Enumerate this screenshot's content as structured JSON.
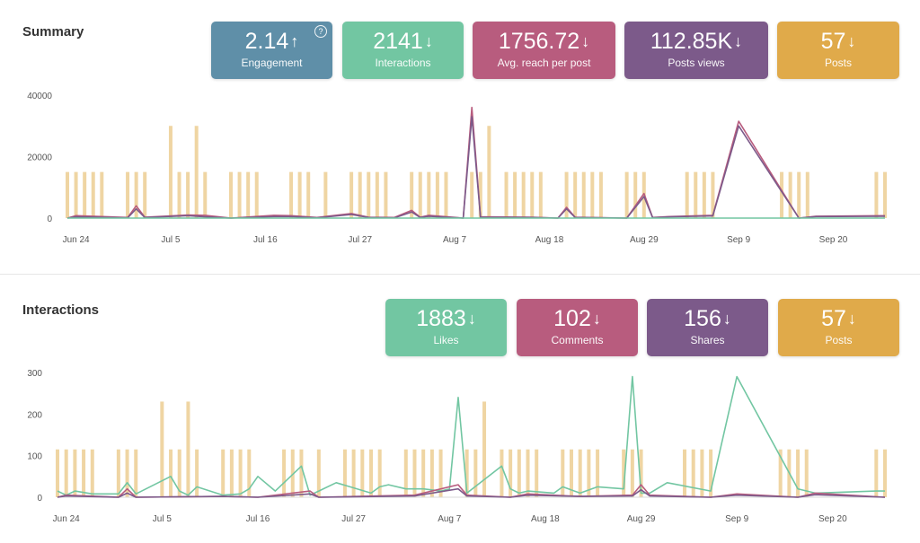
{
  "summary": {
    "title": "Summary",
    "cards": [
      {
        "value": "2.14",
        "arrow": "↑",
        "label": "Engagement",
        "color": "#5f8fa8",
        "help": "?"
      },
      {
        "value": "2141",
        "arrow": "↓",
        "label": "Interactions",
        "color": "#72c6a2"
      },
      {
        "value": "1756.72",
        "arrow": "↓",
        "label": "Avg. reach per post",
        "color": "#b85c7e"
      },
      {
        "value": "112.85K",
        "arrow": "↓",
        "label": "Posts views",
        "color": "#7c5a8a"
      },
      {
        "value": "57",
        "arrow": "↓",
        "label": "Posts",
        "color": "#e0aa4a"
      }
    ]
  },
  "interactions": {
    "title": "Interactions",
    "cards": [
      {
        "value": "1883",
        "arrow": "↓",
        "label": "Likes",
        "color": "#72c6a2"
      },
      {
        "value": "102",
        "arrow": "↓",
        "label": "Comments",
        "color": "#b85c7e"
      },
      {
        "value": "156",
        "arrow": "↓",
        "label": "Shares",
        "color": "#7c5a8a"
      },
      {
        "value": "57",
        "arrow": "↓",
        "label": "Posts",
        "color": "#e0aa4a"
      }
    ]
  },
  "chart_data": [
    {
      "type": "line",
      "x_range": [
        "2019-06-23",
        "2019-09-26"
      ],
      "x_ticks": [
        "Jun 24",
        "Jul 5",
        "Jul 16",
        "Jul 27",
        "Aug 7",
        "Aug 18",
        "Aug 29",
        "Sep 9",
        "Sep 20"
      ],
      "ylim": [
        0,
        40000
      ],
      "y_ticks": [
        "0",
        "20000",
        "40000"
      ],
      "post_bars": {
        "color": "#efd5a3",
        "dates": [
          "2019-06-23",
          "2019-06-24",
          "2019-06-25",
          "2019-06-26",
          "2019-06-27",
          "2019-06-30",
          "2019-07-01",
          "2019-07-02",
          "2019-07-05",
          "2019-07-06",
          "2019-07-07",
          "2019-07-08",
          "2019-07-09",
          "2019-07-12",
          "2019-07-13",
          "2019-07-14",
          "2019-07-15",
          "2019-07-19",
          "2019-07-20",
          "2019-07-21",
          "2019-07-23",
          "2019-07-26",
          "2019-07-27",
          "2019-07-28",
          "2019-07-29",
          "2019-07-30",
          "2019-08-02",
          "2019-08-03",
          "2019-08-04",
          "2019-08-05",
          "2019-08-06",
          "2019-08-09",
          "2019-08-10",
          "2019-08-11",
          "2019-08-13",
          "2019-08-14",
          "2019-08-15",
          "2019-08-16",
          "2019-08-17",
          "2019-08-20",
          "2019-08-21",
          "2019-08-22",
          "2019-08-23",
          "2019-08-24",
          "2019-08-27",
          "2019-08-28",
          "2019-08-29",
          "2019-09-03",
          "2019-09-04",
          "2019-09-05",
          "2019-09-06",
          "2019-09-14",
          "2019-09-15",
          "2019-09-16",
          "2019-09-17",
          "2019-09-25",
          "2019-09-26"
        ],
        "values": [
          15000,
          15000,
          15000,
          15000,
          15000,
          15000,
          15000,
          15000,
          30000,
          15000,
          15000,
          30000,
          15000,
          15000,
          15000,
          15000,
          15000,
          15000,
          15000,
          15000,
          15000,
          15000,
          15000,
          15000,
          15000,
          15000,
          15000,
          15000,
          15000,
          15000,
          15000,
          15000,
          15000,
          30000,
          15000,
          15000,
          15000,
          15000,
          15000,
          15000,
          15000,
          15000,
          15000,
          15000,
          15000,
          15000,
          15000,
          15000,
          15000,
          15000,
          15000,
          15000,
          15000,
          15000,
          15000,
          15000,
          15000
        ]
      },
      "series": [
        {
          "color": "#b85c7e",
          "x": [
            "2019-06-23",
            "2019-06-24",
            "2019-06-30",
            "2019-07-01",
            "2019-07-02",
            "2019-07-07",
            "2019-07-09",
            "2019-07-12",
            "2019-07-17",
            "2019-07-19",
            "2019-07-22",
            "2019-07-26",
            "2019-07-28",
            "2019-07-31",
            "2019-08-02",
            "2019-08-03",
            "2019-08-04",
            "2019-08-08",
            "2019-08-09",
            "2019-08-10",
            "2019-08-16",
            "2019-08-19",
            "2019-08-20",
            "2019-08-21",
            "2019-08-27",
            "2019-08-29",
            "2019-08-30",
            "2019-09-01",
            "2019-09-06",
            "2019-09-09",
            "2019-09-16",
            "2019-09-18",
            "2019-09-26"
          ],
          "y": [
            0,
            800,
            200,
            4000,
            300,
            1000,
            900,
            0,
            900,
            800,
            200,
            1500,
            300,
            200,
            2500,
            300,
            900,
            0,
            36000,
            400,
            300,
            0,
            3500,
            300,
            0,
            8000,
            200,
            500,
            900,
            31500,
            0,
            600,
            800
          ]
        },
        {
          "color": "#7c5a8a",
          "x": [
            "2019-06-23",
            "2019-06-24",
            "2019-06-30",
            "2019-07-01",
            "2019-07-02",
            "2019-07-07",
            "2019-07-09",
            "2019-07-12",
            "2019-07-17",
            "2019-07-19",
            "2019-07-22",
            "2019-07-26",
            "2019-07-28",
            "2019-07-31",
            "2019-08-02",
            "2019-08-03",
            "2019-08-04",
            "2019-08-08",
            "2019-08-09",
            "2019-08-10",
            "2019-08-16",
            "2019-08-19",
            "2019-08-20",
            "2019-08-21",
            "2019-08-27",
            "2019-08-29",
            "2019-08-30",
            "2019-09-01",
            "2019-09-06",
            "2019-09-09",
            "2019-09-16",
            "2019-09-18",
            "2019-09-26"
          ],
          "y": [
            0,
            400,
            100,
            3000,
            200,
            800,
            400,
            0,
            500,
            500,
            100,
            1200,
            200,
            100,
            2000,
            200,
            600,
            0,
            33000,
            300,
            200,
            0,
            3000,
            200,
            0,
            7000,
            150,
            400,
            700,
            30000,
            0,
            500,
            600
          ]
        },
        {
          "color": "#72c6a2",
          "x": [
            "2019-06-23",
            "2019-09-26"
          ],
          "y": [
            0,
            0
          ]
        }
      ]
    },
    {
      "type": "line",
      "x_range": [
        "2019-06-23",
        "2019-09-26"
      ],
      "x_ticks": [
        "Jun 24",
        "Jul 5",
        "Jul 16",
        "Jul 27",
        "Aug 7",
        "Aug 18",
        "Aug 29",
        "Sep 9",
        "Sep 20"
      ],
      "ylim": [
        0,
        300
      ],
      "y_ticks": [
        "0",
        "100",
        "200",
        "300"
      ],
      "post_bars": {
        "color": "#efd5a3",
        "dates": [
          "2019-06-23",
          "2019-06-24",
          "2019-06-25",
          "2019-06-26",
          "2019-06-27",
          "2019-06-30",
          "2019-07-01",
          "2019-07-02",
          "2019-07-05",
          "2019-07-06",
          "2019-07-07",
          "2019-07-08",
          "2019-07-09",
          "2019-07-12",
          "2019-07-13",
          "2019-07-14",
          "2019-07-15",
          "2019-07-19",
          "2019-07-20",
          "2019-07-21",
          "2019-07-23",
          "2019-07-26",
          "2019-07-27",
          "2019-07-28",
          "2019-07-29",
          "2019-07-30",
          "2019-08-02",
          "2019-08-03",
          "2019-08-04",
          "2019-08-05",
          "2019-08-06",
          "2019-08-09",
          "2019-08-10",
          "2019-08-11",
          "2019-08-13",
          "2019-08-14",
          "2019-08-15",
          "2019-08-16",
          "2019-08-17",
          "2019-08-20",
          "2019-08-21",
          "2019-08-22",
          "2019-08-23",
          "2019-08-24",
          "2019-08-27",
          "2019-08-28",
          "2019-08-29",
          "2019-09-03",
          "2019-09-04",
          "2019-09-05",
          "2019-09-06",
          "2019-09-14",
          "2019-09-15",
          "2019-09-16",
          "2019-09-17",
          "2019-09-25",
          "2019-09-26"
        ],
        "values": [
          115,
          115,
          115,
          115,
          115,
          115,
          115,
          115,
          230,
          115,
          115,
          230,
          115,
          115,
          115,
          115,
          115,
          115,
          115,
          115,
          115,
          115,
          115,
          115,
          115,
          115,
          115,
          115,
          115,
          115,
          115,
          115,
          115,
          230,
          115,
          115,
          115,
          115,
          115,
          115,
          115,
          115,
          115,
          115,
          115,
          115,
          115,
          115,
          115,
          115,
          115,
          115,
          115,
          115,
          115,
          115,
          115
        ]
      },
      "series": [
        {
          "color": "#72c6a2",
          "x": [
            "2019-06-23",
            "2019-06-24",
            "2019-06-25",
            "2019-06-27",
            "2019-06-30",
            "2019-07-01",
            "2019-07-02",
            "2019-07-06",
            "2019-07-07",
            "2019-07-08",
            "2019-07-09",
            "2019-07-12",
            "2019-07-14",
            "2019-07-15",
            "2019-07-16",
            "2019-07-18",
            "2019-07-21",
            "2019-07-22",
            "2019-07-23",
            "2019-07-25",
            "2019-07-29",
            "2019-07-30",
            "2019-07-31",
            "2019-08-02",
            "2019-08-04",
            "2019-08-06",
            "2019-08-07",
            "2019-08-08",
            "2019-08-09",
            "2019-08-13",
            "2019-08-14",
            "2019-08-15",
            "2019-08-16",
            "2019-08-19",
            "2019-08-20",
            "2019-08-22",
            "2019-08-24",
            "2019-08-27",
            "2019-08-28",
            "2019-08-29",
            "2019-08-30",
            "2019-09-01",
            "2019-09-06",
            "2019-09-09",
            "2019-09-16",
            "2019-09-18",
            "2019-09-25",
            "2019-09-26"
          ],
          "y": [
            15,
            5,
            15,
            8,
            8,
            35,
            8,
            50,
            15,
            5,
            25,
            5,
            8,
            20,
            50,
            15,
            75,
            5,
            15,
            35,
            10,
            25,
            30,
            20,
            20,
            15,
            20,
            240,
            10,
            75,
            20,
            10,
            15,
            10,
            25,
            10,
            25,
            20,
            290,
            10,
            10,
            35,
            15,
            290,
            20,
            10,
            15,
            15
          ]
        },
        {
          "color": "#b85c7e",
          "x": [
            "2019-06-23",
            "2019-06-24",
            "2019-06-30",
            "2019-07-01",
            "2019-07-02",
            "2019-07-12",
            "2019-07-16",
            "2019-07-22",
            "2019-07-23",
            "2019-08-03",
            "2019-08-08",
            "2019-08-09",
            "2019-08-14",
            "2019-08-16",
            "2019-08-22",
            "2019-08-28",
            "2019-08-29",
            "2019-08-30",
            "2019-09-06",
            "2019-09-09",
            "2019-09-16",
            "2019-09-18",
            "2019-09-26"
          ],
          "y": [
            0,
            5,
            0,
            20,
            0,
            2,
            0,
            15,
            0,
            5,
            30,
            5,
            0,
            8,
            2,
            5,
            30,
            5,
            0,
            8,
            0,
            10,
            0
          ]
        },
        {
          "color": "#7c5a8a",
          "x": [
            "2019-06-23",
            "2019-06-24",
            "2019-06-30",
            "2019-07-01",
            "2019-07-02",
            "2019-07-12",
            "2019-07-16",
            "2019-07-22",
            "2019-07-23",
            "2019-08-03",
            "2019-08-08",
            "2019-08-09",
            "2019-08-14",
            "2019-08-16",
            "2019-08-22",
            "2019-08-28",
            "2019-08-29",
            "2019-08-30",
            "2019-09-06",
            "2019-09-09",
            "2019-09-16",
            "2019-09-18",
            "2019-09-26"
          ],
          "y": [
            0,
            3,
            0,
            10,
            0,
            2,
            0,
            8,
            0,
            3,
            20,
            3,
            0,
            5,
            2,
            3,
            18,
            3,
            0,
            5,
            0,
            6,
            0
          ]
        }
      ]
    }
  ]
}
